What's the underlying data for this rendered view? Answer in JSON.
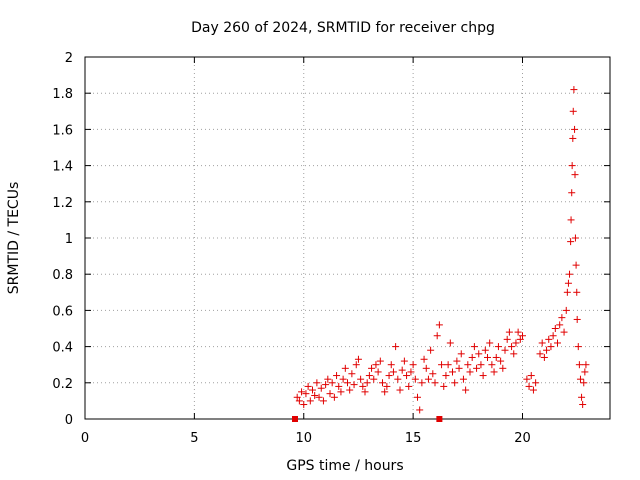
{
  "chart_data": {
    "type": "scatter",
    "title": "Day 260 of 2024, SRMTID for receiver chpg",
    "xlabel": "GPS time / hours",
    "ylabel": "SRMTID / TECUs",
    "xlim": [
      0,
      24
    ],
    "ylim": [
      0,
      2
    ],
    "xticks": [
      0,
      5,
      10,
      15,
      20
    ],
    "xtick_labels": [
      "0",
      "5",
      "10",
      "15",
      "20"
    ],
    "yticks": [
      0,
      0.2,
      0.4,
      0.6,
      0.8,
      1,
      1.2,
      1.4,
      1.6,
      1.8,
      2
    ],
    "ytick_labels": [
      "0",
      "0.2",
      "0.4",
      "0.6",
      "0.8",
      "1",
      "1.2",
      "1.4",
      "1.6",
      "1.8",
      "2"
    ],
    "grid": true,
    "marker": "+",
    "color": "#e00000",
    "data_gap_markers": [
      {
        "x": 9.6,
        "y": 0
      },
      {
        "x": 16.2,
        "y": 0
      }
    ],
    "series": [
      {
        "name": "SRMTID chpg",
        "points": [
          [
            9.7,
            0.12
          ],
          [
            9.8,
            0.1
          ],
          [
            9.9,
            0.15
          ],
          [
            10.0,
            0.08
          ],
          [
            10.1,
            0.14
          ],
          [
            10.2,
            0.18
          ],
          [
            10.3,
            0.1
          ],
          [
            10.4,
            0.16
          ],
          [
            10.5,
            0.13
          ],
          [
            10.6,
            0.2
          ],
          [
            10.7,
            0.12
          ],
          [
            10.8,
            0.17
          ],
          [
            10.9,
            0.1
          ],
          [
            11.0,
            0.19
          ],
          [
            11.1,
            0.22
          ],
          [
            11.2,
            0.14
          ],
          [
            11.3,
            0.2
          ],
          [
            11.4,
            0.12
          ],
          [
            11.5,
            0.24
          ],
          [
            11.6,
            0.18
          ],
          [
            11.7,
            0.15
          ],
          [
            11.8,
            0.22
          ],
          [
            11.9,
            0.28
          ],
          [
            12.0,
            0.2
          ],
          [
            12.1,
            0.16
          ],
          [
            12.2,
            0.25
          ],
          [
            12.3,
            0.19
          ],
          [
            12.4,
            0.3
          ],
          [
            12.5,
            0.33
          ],
          [
            12.6,
            0.22
          ],
          [
            12.7,
            0.18
          ],
          [
            12.8,
            0.15
          ],
          [
            12.9,
            0.2
          ],
          [
            13.0,
            0.24
          ],
          [
            13.1,
            0.28
          ],
          [
            13.2,
            0.22
          ],
          [
            13.3,
            0.3
          ],
          [
            13.4,
            0.26
          ],
          [
            13.5,
            0.32
          ],
          [
            13.6,
            0.2
          ],
          [
            13.7,
            0.15
          ],
          [
            13.8,
            0.18
          ],
          [
            13.9,
            0.24
          ],
          [
            14.0,
            0.3
          ],
          [
            14.1,
            0.26
          ],
          [
            14.2,
            0.4
          ],
          [
            14.3,
            0.22
          ],
          [
            14.4,
            0.16
          ],
          [
            14.5,
            0.27
          ],
          [
            14.6,
            0.32
          ],
          [
            14.7,
            0.24
          ],
          [
            14.8,
            0.18
          ],
          [
            14.9,
            0.26
          ],
          [
            15.0,
            0.3
          ],
          [
            15.1,
            0.22
          ],
          [
            15.2,
            0.12
          ],
          [
            15.3,
            0.05
          ],
          [
            15.4,
            0.2
          ],
          [
            15.5,
            0.33
          ],
          [
            15.6,
            0.28
          ],
          [
            15.7,
            0.22
          ],
          [
            15.8,
            0.38
          ],
          [
            15.9,
            0.25
          ],
          [
            16.0,
            0.2
          ],
          [
            16.1,
            0.46
          ],
          [
            16.2,
            0.52
          ],
          [
            16.3,
            0.3
          ],
          [
            16.4,
            0.18
          ],
          [
            16.5,
            0.24
          ],
          [
            16.6,
            0.3
          ],
          [
            16.7,
            0.42
          ],
          [
            16.8,
            0.26
          ],
          [
            16.9,
            0.2
          ],
          [
            17.0,
            0.32
          ],
          [
            17.1,
            0.28
          ],
          [
            17.2,
            0.36
          ],
          [
            17.3,
            0.22
          ],
          [
            17.4,
            0.16
          ],
          [
            17.5,
            0.3
          ],
          [
            17.6,
            0.26
          ],
          [
            17.7,
            0.34
          ],
          [
            17.8,
            0.4
          ],
          [
            17.9,
            0.28
          ],
          [
            18.0,
            0.36
          ],
          [
            18.1,
            0.3
          ],
          [
            18.2,
            0.24
          ],
          [
            18.3,
            0.38
          ],
          [
            18.4,
            0.34
          ],
          [
            18.5,
            0.42
          ],
          [
            18.6,
            0.3
          ],
          [
            18.7,
            0.26
          ],
          [
            18.8,
            0.34
          ],
          [
            18.9,
            0.4
          ],
          [
            19.0,
            0.32
          ],
          [
            19.1,
            0.28
          ],
          [
            19.2,
            0.38
          ],
          [
            19.3,
            0.44
          ],
          [
            19.4,
            0.48
          ],
          [
            19.5,
            0.4
          ],
          [
            19.6,
            0.36
          ],
          [
            19.7,
            0.42
          ],
          [
            19.8,
            0.48
          ],
          [
            19.9,
            0.44
          ],
          [
            20.0,
            0.46
          ],
          [
            20.2,
            0.22
          ],
          [
            20.3,
            0.18
          ],
          [
            20.4,
            0.24
          ],
          [
            20.5,
            0.16
          ],
          [
            20.6,
            0.2
          ],
          [
            20.8,
            0.36
          ],
          [
            20.9,
            0.42
          ],
          [
            21.0,
            0.34
          ],
          [
            21.1,
            0.38
          ],
          [
            21.2,
            0.44
          ],
          [
            21.3,
            0.4
          ],
          [
            21.4,
            0.46
          ],
          [
            21.5,
            0.5
          ],
          [
            21.6,
            0.42
          ],
          [
            21.7,
            0.52
          ],
          [
            21.8,
            0.56
          ],
          [
            21.9,
            0.48
          ],
          [
            22.0,
            0.6
          ],
          [
            22.05,
            0.7
          ],
          [
            22.1,
            0.75
          ],
          [
            22.15,
            0.8
          ],
          [
            22.2,
            0.98
          ],
          [
            22.22,
            1.1
          ],
          [
            22.25,
            1.25
          ],
          [
            22.27,
            1.4
          ],
          [
            22.3,
            1.55
          ],
          [
            22.32,
            1.7
          ],
          [
            22.35,
            1.82
          ],
          [
            22.38,
            1.6
          ],
          [
            22.4,
            1.35
          ],
          [
            22.42,
            1.0
          ],
          [
            22.45,
            0.85
          ],
          [
            22.48,
            0.7
          ],
          [
            22.5,
            0.55
          ],
          [
            22.55,
            0.4
          ],
          [
            22.6,
            0.3
          ],
          [
            22.65,
            0.22
          ],
          [
            22.7,
            0.12
          ],
          [
            22.75,
            0.08
          ],
          [
            22.8,
            0.2
          ],
          [
            22.85,
            0.26
          ],
          [
            22.9,
            0.3
          ]
        ]
      }
    ]
  }
}
